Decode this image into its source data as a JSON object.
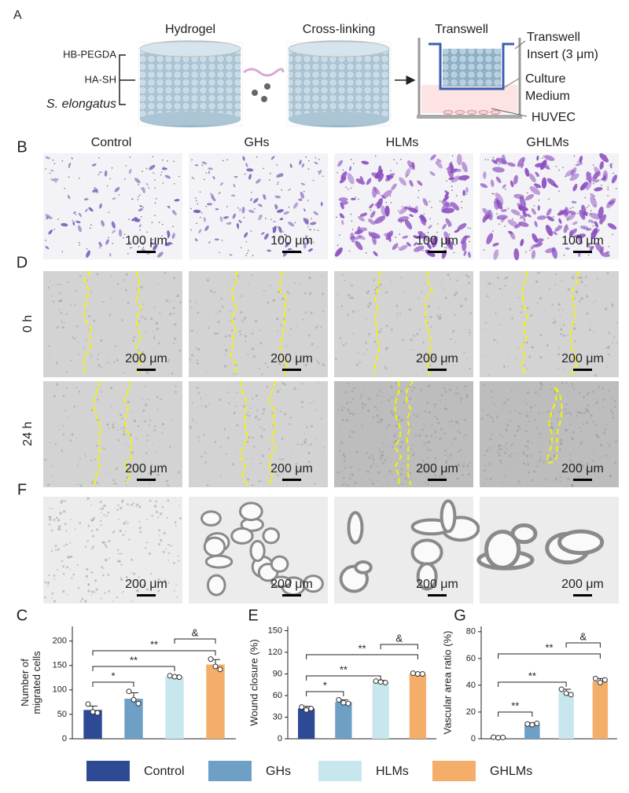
{
  "panel_labels": [
    "A",
    "B",
    "D",
    "F",
    "C",
    "E",
    "G"
  ],
  "schematic": {
    "inputs": [
      "HB-PEGDA",
      "HA-SH",
      "S. elongatus"
    ],
    "steps": [
      "Hydrogel",
      "Cross-linking",
      "Transwell"
    ],
    "insert": [
      "Transwell",
      "Insert (3 μm)"
    ],
    "medium": [
      "Culture",
      "Medium"
    ],
    "cells": "HUVEC"
  },
  "columns": [
    "Control",
    "GHs",
    "HLMs",
    "GHLMs"
  ],
  "rows": [
    "0 h",
    "24 h"
  ],
  "scale_bars": {
    "B": "100 μm",
    "D": "200 μm",
    "F": "200 μm"
  },
  "chart_data": [
    {
      "type": "bar",
      "ylabel": [
        "Number of",
        "migrated cells"
      ],
      "categories": [
        "Control",
        "GHs",
        "HLMs",
        "GHLMs"
      ],
      "values": [
        59,
        82,
        127,
        152
      ],
      "errors": [
        8,
        12,
        3,
        10
      ],
      "points": [
        [
          71,
          55,
          53
        ],
        [
          97,
          80,
          72
        ],
        [
          129,
          127,
          126
        ],
        [
          163,
          148,
          142
        ]
      ],
      "colors": [
        "#2e4a94",
        "#6e9fc4",
        "#c8e6ee",
        "#f4ae6a"
      ],
      "ylim": [
        0,
        230
      ],
      "yticks": [
        0,
        50,
        100,
        150,
        200
      ],
      "annotations": [
        {
          "text": "*",
          "between": [
            "Control",
            "GHs"
          ]
        },
        {
          "text": "**",
          "between": [
            "Control",
            "HLMs"
          ]
        },
        {
          "text": "**",
          "between": [
            "Control",
            "GHLMs"
          ]
        },
        {
          "text": "&",
          "between": [
            "HLMs",
            "GHLMs"
          ]
        }
      ]
    },
    {
      "type": "bar",
      "ylabel": [
        "Wound closure (%)"
      ],
      "categories": [
        "Control",
        "GHs",
        "HLMs",
        "GHLMs"
      ],
      "values": [
        42,
        51,
        79,
        90
      ],
      "errors": [
        3,
        3,
        2,
        1
      ],
      "points": [
        [
          44,
          40,
          42
        ],
        [
          54,
          50,
          49
        ],
        [
          80,
          79,
          78
        ],
        [
          91,
          90,
          90
        ]
      ],
      "colors": [
        "#2e4a94",
        "#6e9fc4",
        "#c8e6ee",
        "#f4ae6a"
      ],
      "ylim": [
        0,
        156
      ],
      "yticks": [
        0,
        30,
        60,
        90,
        120,
        150
      ],
      "annotations": [
        {
          "text": "*",
          "between": [
            "Control",
            "GHs"
          ]
        },
        {
          "text": "**",
          "between": [
            "Control",
            "HLMs"
          ]
        },
        {
          "text": "**",
          "between": [
            "Control",
            "GHLMs"
          ]
        },
        {
          "text": "&",
          "between": [
            "HLMs",
            "GHLMs"
          ]
        }
      ]
    },
    {
      "type": "bar",
      "ylabel": [
        "Vascular area ratio (%)"
      ],
      "categories": [
        "Control",
        "GHs",
        "HLMs",
        "GHLMs"
      ],
      "values": [
        1,
        11,
        35,
        43
      ],
      "errors": [
        0.5,
        1,
        2,
        2
      ],
      "points": [
        [
          1.2,
          0.8,
          1
        ],
        [
          11,
          10.5,
          11.5
        ],
        [
          37,
          34,
          33
        ],
        [
          45,
          42,
          44
        ]
      ],
      "colors": [
        "#2e4a94",
        "#6e9fc4",
        "#c8e6ee",
        "#f4ae6a"
      ],
      "ylim": [
        0,
        84
      ],
      "yticks": [
        0,
        20,
        40,
        60,
        80
      ],
      "annotations": [
        {
          "text": "**",
          "between": [
            "Control",
            "GHs"
          ]
        },
        {
          "text": "**",
          "between": [
            "Control",
            "HLMs"
          ]
        },
        {
          "text": "**",
          "between": [
            "Control",
            "GHLMs"
          ]
        },
        {
          "text": "&",
          "between": [
            "HLMs",
            "GHLMs"
          ]
        }
      ]
    }
  ]
}
